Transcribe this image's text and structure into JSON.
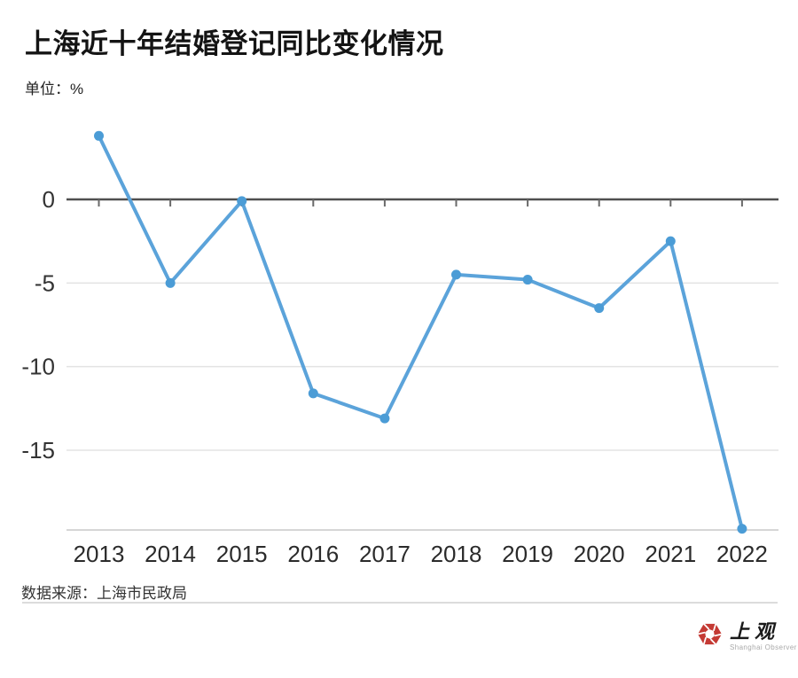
{
  "header": {
    "title": "上海近十年结婚登记同比变化情况",
    "unit_label": "单位：%"
  },
  "footer": {
    "source": "数据来源：上海市民政局",
    "logo": {
      "name_cn": "上观",
      "name_en": "Shanghai Observer",
      "brand_red": "#c43a34"
    }
  },
  "chart_data": {
    "type": "line",
    "title": "上海近十年结婚登记同比变化情况",
    "unit": "%",
    "categories": [
      "2013",
      "2014",
      "2015",
      "2016",
      "2017",
      "2018",
      "2019",
      "2020",
      "2021",
      "2022"
    ],
    "values": [
      3.8,
      -5.0,
      -0.1,
      -11.6,
      -13.1,
      -4.5,
      -4.8,
      -6.5,
      -2.5,
      -19.7
    ],
    "yticks": [
      0,
      -5,
      -10,
      -15
    ],
    "ytick_labels": [
      "0",
      "-5",
      "-10",
      "-15"
    ],
    "ylim": [
      5,
      -19.7
    ],
    "xlabel": "",
    "ylabel": "%",
    "grid": "horizontal",
    "legend": "none",
    "line_color": "#5ba3da",
    "point_color": "#4b9cd6",
    "zero_axis_color": "#4f4f4f",
    "gridline_color": "#e3e3e3",
    "bottom_border_color": "#c9c9c9",
    "label_color": "#333333",
    "source": "上海市民政局"
  }
}
